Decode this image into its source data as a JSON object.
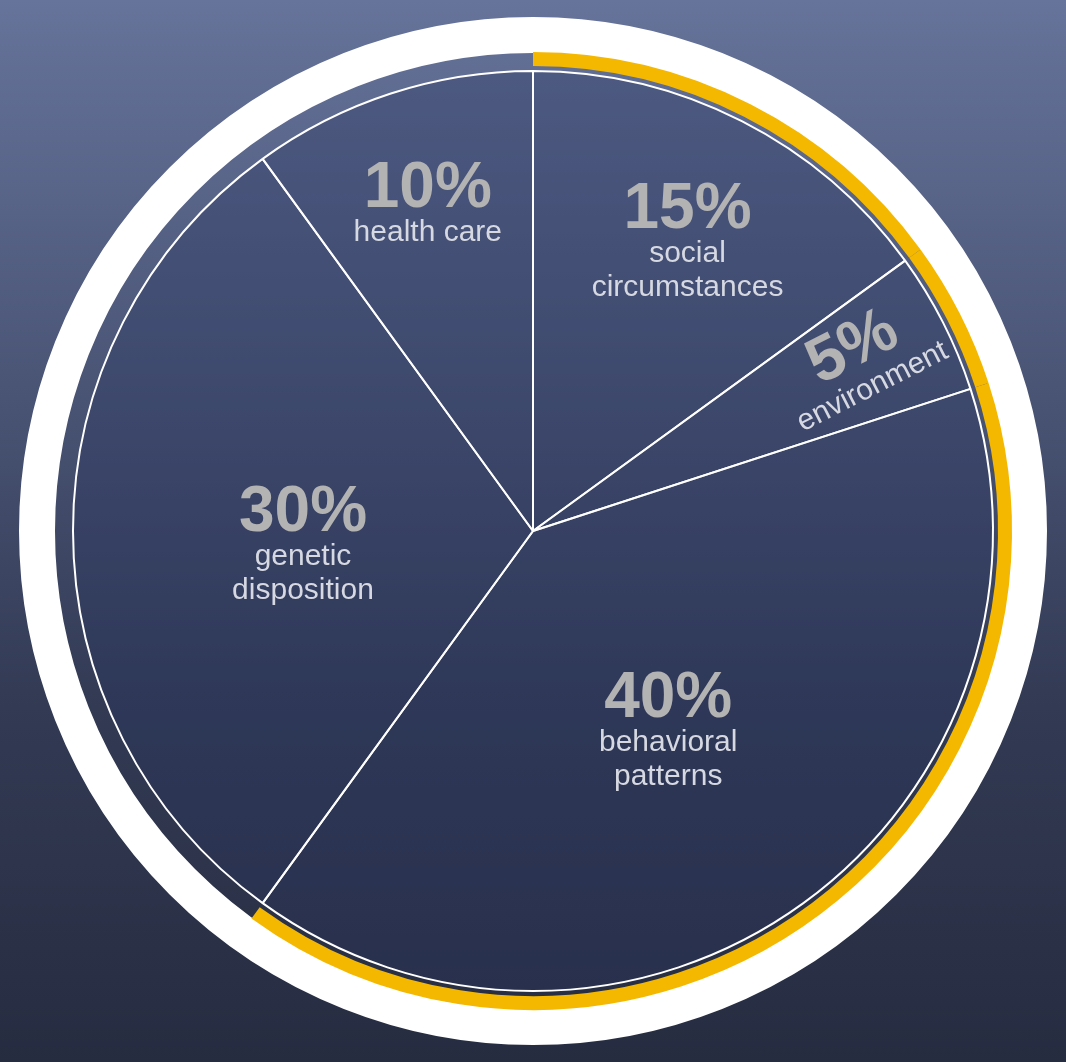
{
  "chart_data": {
    "type": "pie",
    "categories": [
      "social circumstances",
      "environment",
      "behavioral patterns",
      "genetic disposition",
      "health care"
    ],
    "values": [
      15,
      5,
      40,
      30,
      10
    ],
    "value_labels": [
      "15%",
      "5%",
      "40%",
      "30%",
      "10%"
    ],
    "data_labels": true,
    "colors": [
      "#f5b800",
      "#f5b800",
      "#f5b800",
      "#ffffff",
      "#ffffff"
    ]
  }
}
